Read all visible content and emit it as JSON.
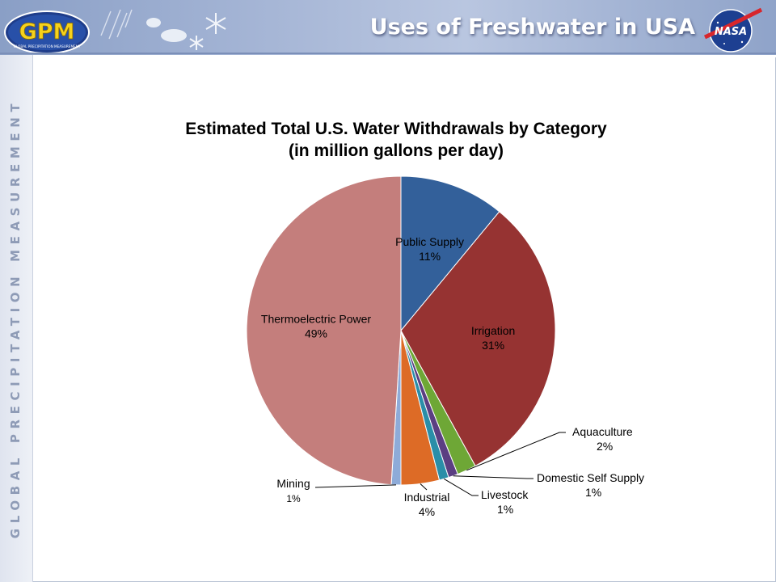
{
  "header": {
    "title": "Uses of Freshwater in USA",
    "gpm_logo_text": "GPM",
    "gpm_logo_subtext": "GLOBAL PRECIPITATION MEASUREMENT",
    "nasa_logo_text": "NASA",
    "side_banner": "GLOBAL PRECIPITATION MEASUREMENT"
  },
  "colors": {
    "public_supply": "#33609a",
    "irrigation": "#963332",
    "aquaculture": "#6ea736",
    "domestic": "#5b3f82",
    "livestock": "#2a8ea8",
    "industrial": "#dd6b26",
    "mining": "#8eabd8",
    "thermoelectric": "#c47e7c",
    "header_band": "#a6b6d6"
  },
  "chart_data": {
    "type": "pie",
    "title_line1": "Estimated Total U.S. Water Withdrawals by Category",
    "title_line2": "(in million gallons per day)",
    "unit": "%",
    "start_angle_deg": 0,
    "direction": "clockwise",
    "slices": [
      {
        "label": "Public Supply",
        "value": 11,
        "value_text": "11%",
        "color_key": "public_supply"
      },
      {
        "label": "Irrigation",
        "value": 31,
        "value_text": "31%",
        "color_key": "irrigation"
      },
      {
        "label": "Aquaculture",
        "value": 2,
        "value_text": "2%",
        "color_key": "aquaculture"
      },
      {
        "label": "Domestic Self Supply",
        "value": 1,
        "value_text": "1%",
        "color_key": "domestic"
      },
      {
        "label": "Livestock",
        "value": 1,
        "value_text": "1%",
        "color_key": "livestock"
      },
      {
        "label": "Industrial",
        "value": 4,
        "value_text": "4%",
        "color_key": "industrial"
      },
      {
        "label": "Mining",
        "value": 1,
        "value_text": "1%",
        "color_key": "mining"
      },
      {
        "label": "Thermoelectric Power",
        "value": 49,
        "value_text": "49%",
        "color_key": "thermoelectric"
      }
    ]
  }
}
